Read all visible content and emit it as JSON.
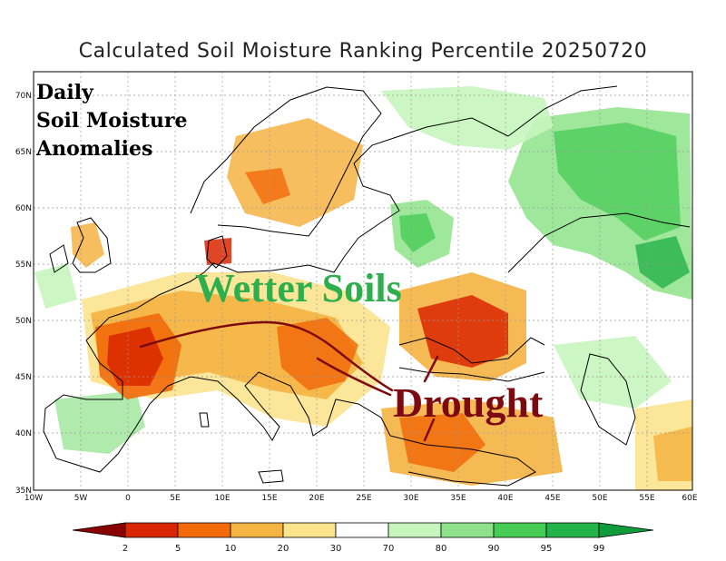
{
  "title": "Calculated Soil Moisture Ranking Percentile 20250720",
  "annotations": {
    "panel_line1": "Daily",
    "panel_line2": "Soil Moisture",
    "panel_line3": "Anomalies",
    "wet_label": "Wetter Soils",
    "dry_label": "Drought"
  },
  "map": {
    "lat_labels": [
      "70N",
      "65N",
      "60N",
      "55N",
      "50N",
      "45N",
      "40N",
      "35N"
    ],
    "lon_labels": [
      "10W",
      "5W",
      "0",
      "5E",
      "10E",
      "15E",
      "20E",
      "25E",
      "30E",
      "35E",
      "40E",
      "45E",
      "50E",
      "55E",
      "60E"
    ]
  },
  "colorbar": {
    "labels": [
      "2",
      "5",
      "10",
      "20",
      "30",
      "70",
      "80",
      "90",
      "95",
      "99"
    ],
    "colors": [
      "#8b0000",
      "#d92600",
      "#f26a0a",
      "#f5b342",
      "#fbe38e",
      "#ffffff",
      "#c6f5bd",
      "#8ee38a",
      "#47cc55",
      "#23b34a",
      "#119c3c"
    ]
  },
  "colors": {
    "dry_red": "#7b0b10",
    "wet_green": "#2fae4e"
  }
}
